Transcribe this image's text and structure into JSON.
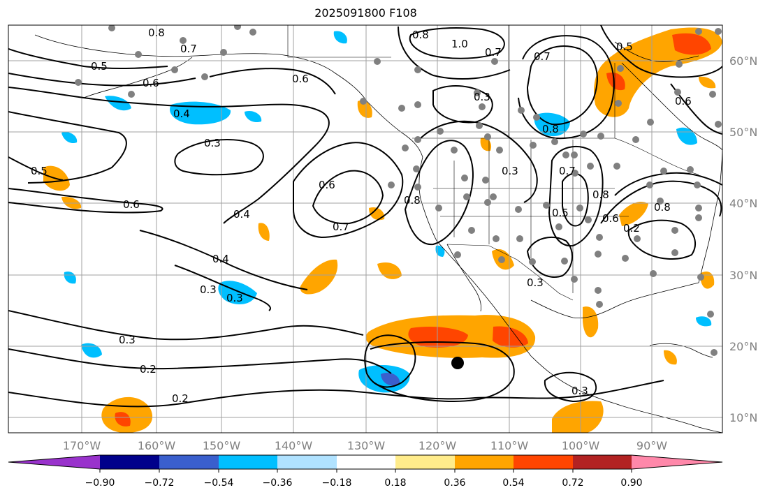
{
  "title": "2025091800 F108",
  "lon_labels": [
    "170°W",
    "160°W",
    "150°W",
    "140°W",
    "130°W",
    "120°W",
    "110°W",
    "100°W",
    "90°W"
  ],
  "lat_labels": [
    "60°N",
    "50°N",
    "40°N",
    "30°N",
    "20°N",
    "10°N"
  ],
  "colorbar": {
    "tick_labels": [
      "−0.90",
      "−0.72",
      "−0.54",
      "−0.36",
      "−0.18",
      "0.18",
      "0.36",
      "0.54",
      "0.72",
      "0.90"
    ],
    "colors": [
      "#9932cc",
      "#00008b",
      "#3a5fcd",
      "#00bfff",
      "#b0e2ff",
      "#ffffff",
      "#ffec8b",
      "#ffa500",
      "#ff4500",
      "#b22222",
      "#ff88aa"
    ]
  },
  "contour_labels": [
    "0.8",
    "0.7",
    "0.5",
    "0.6",
    "0.4",
    "0.3",
    "0.5",
    "0.6",
    "0.4",
    "0.3",
    "0.4",
    "0.3",
    "0.3",
    "0.2",
    "0.2",
    "0.6",
    "0.6",
    "0.7",
    "0.8",
    "1.0",
    "0.7",
    "0.7",
    "0.3",
    "0.8",
    "0.3",
    "0.8",
    "0.7",
    "0.8",
    "0.5",
    "0.6",
    "0.8",
    "0.2",
    "0.3",
    "0.3",
    "0.5",
    "0.6"
  ],
  "colors": {
    "contour": "#000000",
    "grid": "#a0a0a0",
    "station": "#808080",
    "label": "#808080"
  }
}
